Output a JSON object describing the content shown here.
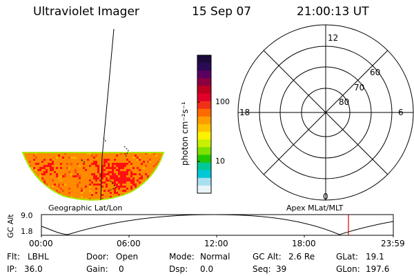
{
  "header": {
    "instrument": "Ultraviolet Imager",
    "date": "15 Sep 07",
    "time": "21:00:13 UT"
  },
  "colorbar": {
    "unit_label": "photon cm⁻²s⁻¹",
    "ticks": [
      "100",
      "10"
    ],
    "colors": [
      "#1b0b3a",
      "#2b0a55",
      "#5a0060",
      "#8a0040",
      "#bd0020",
      "#e0002a",
      "#f2301a",
      "#ff6a00",
      "#ff9d00",
      "#ffc400",
      "#fff200",
      "#c8f000",
      "#7ee000",
      "#20c800",
      "#00c896",
      "#00c8d8",
      "#a8e0f0",
      "#e8f4f8"
    ]
  },
  "labels": {
    "map_left": "Geographic Lat/Lon",
    "map_right": "Apex MLat/MLT"
  },
  "polar": {
    "mlt_top": "12",
    "mlt_bottom": "0",
    "mlt_left": "18",
    "mlt_right": "6",
    "lat_rings": [
      "60",
      "70",
      "80"
    ]
  },
  "altitude_plot": {
    "ylabel": "GC Alt",
    "yticks": [
      "9.0",
      "1.8"
    ],
    "xticks": [
      "00:00",
      "06:00",
      "12:00",
      "18:00",
      "23:59"
    ],
    "marker_color": "#dd0000"
  },
  "status": {
    "row1": [
      {
        "key": "Flt:",
        "value": "LBHL"
      },
      {
        "key": "Door:",
        "value": "Open"
      },
      {
        "key": "Mode:",
        "value": "Normal"
      },
      {
        "key": "GC Alt:",
        "value": "2.6 Re"
      },
      {
        "key": "GLat:",
        "value": "19.1"
      }
    ],
    "row2": [
      {
        "key": "IP:",
        "value": "36.0"
      },
      {
        "key": "Gain:",
        "value": "0"
      },
      {
        "key": "Dsp:",
        "value": "0.0"
      },
      {
        "key": "Seq:",
        "value": "39"
      },
      {
        "key": "GLon:",
        "value": "197.6"
      }
    ]
  }
}
